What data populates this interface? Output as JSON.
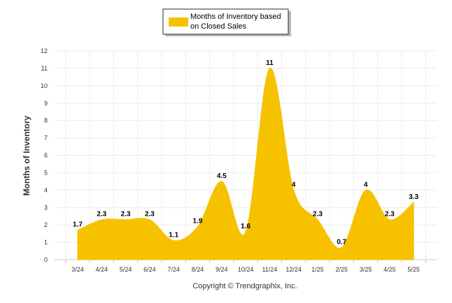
{
  "chart_data": {
    "type": "area",
    "title": "",
    "xlabel": "",
    "ylabel": "Months of Inventory",
    "categories": [
      "3/24",
      "4/24",
      "5/24",
      "6/24",
      "7/24",
      "8/24",
      "9/24",
      "10/24",
      "11/24",
      "12/24",
      "1/25",
      "2/25",
      "3/25",
      "4/25",
      "5/25"
    ],
    "series": [
      {
        "name": "Months of Inventory based on Closed Sales",
        "values": [
          1.7,
          2.3,
          2.3,
          2.3,
          1.1,
          1.9,
          4.5,
          1.6,
          11,
          4,
          2.3,
          0.7,
          4,
          2.3,
          3.3
        ],
        "labels": [
          "1.7",
          "2.3",
          "2.3",
          "2.3",
          "1.1",
          "1.9",
          "4.5",
          "1.6",
          "11",
          "4",
          "2.3",
          "0.7",
          "4",
          "2.3",
          "3.3"
        ]
      }
    ],
    "ylim": [
      0,
      12
    ],
    "yticks": [
      "0",
      "1",
      "2",
      "3",
      "4",
      "5",
      "6",
      "7",
      "8",
      "9",
      "10",
      "11",
      "12"
    ],
    "grid": true,
    "legend_position": "top-center",
    "colors": {
      "fill": "#f6c200",
      "grid": "#ebebeb",
      "legend_border": "#1f2a44"
    }
  },
  "legend": {
    "line1": "Months of Inventory based",
    "line2": "on Closed Sales"
  },
  "footer": {
    "copyright": "Copyright © Trendgraphix, Inc."
  }
}
